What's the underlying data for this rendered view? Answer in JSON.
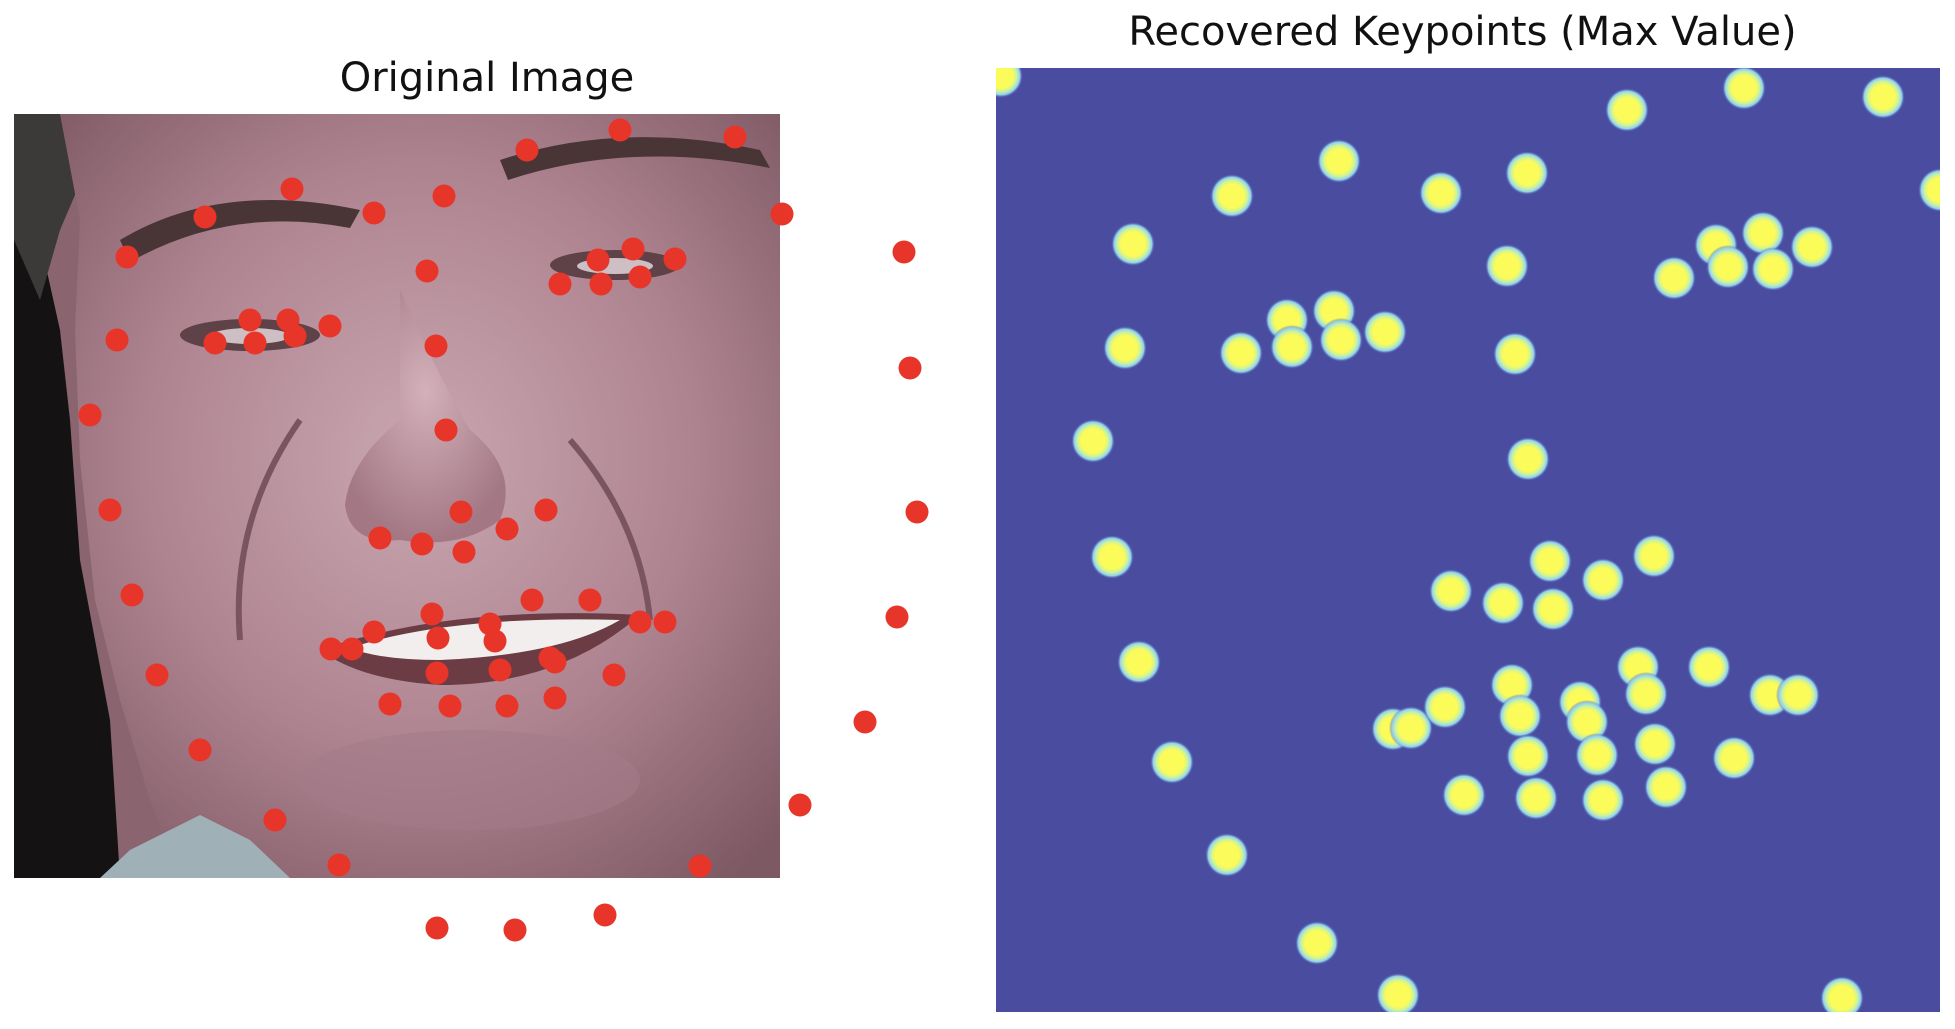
{
  "panels": {
    "left": {
      "title": "Original Image",
      "image": "cropped photograph of a smiling middle-aged man's face (close-up, forehead to chin)",
      "marker_color": "#e8352a"
    },
    "right": {
      "title": "Recovered Keypoints (Max Value)",
      "background_color": "#4a4d9f",
      "keypoint_color": "#fbfb5a"
    }
  }
}
